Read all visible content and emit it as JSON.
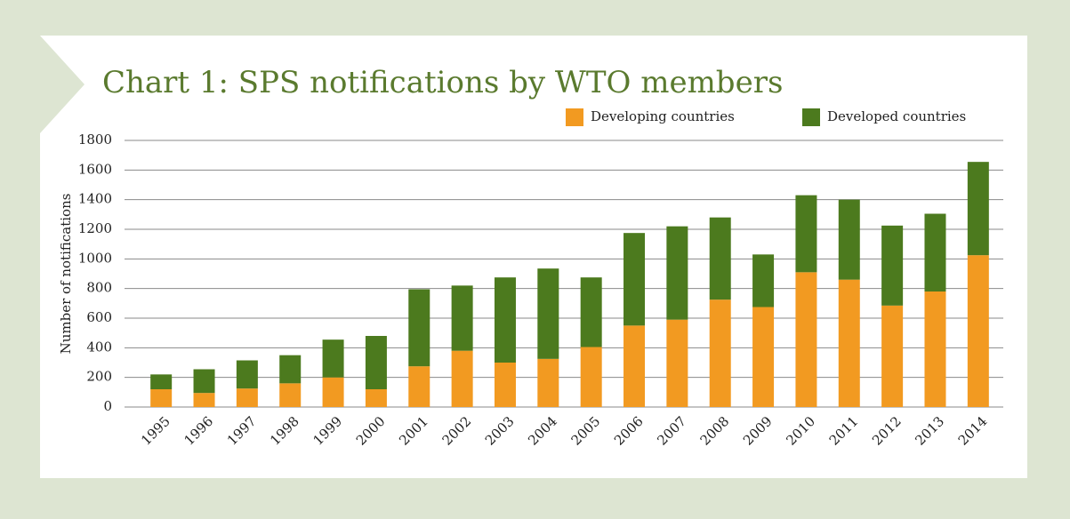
{
  "chart_data": {
    "type": "stacked_bar",
    "title": "Chart 1: SPS notifications by WTO members",
    "y_label": "Number of notifications",
    "categories": [
      "1995",
      "1996",
      "1997",
      "1998",
      "1999",
      "2000",
      "2001",
      "2002",
      "2003",
      "2004",
      "2005",
      "2006",
      "2007",
      "2008",
      "2009",
      "2010",
      "2011",
      "2012",
      "2013",
      "2014"
    ],
    "series": [
      {
        "name": "Developing countries",
        "color": "#f29a21",
        "values": [
          120,
          95,
          125,
          160,
          200,
          120,
          275,
          380,
          300,
          325,
          405,
          550,
          590,
          725,
          675,
          910,
          860,
          685,
          780,
          1025
        ]
      },
      {
        "name": "Developed countries",
        "color": "#4c7a1e",
        "values": [
          100,
          160,
          190,
          190,
          255,
          360,
          520,
          440,
          575,
          610,
          470,
          625,
          630,
          555,
          355,
          520,
          540,
          540,
          525,
          630
        ]
      }
    ],
    "ylim": [
      0,
      1800
    ],
    "yticks": [
      0,
      200,
      400,
      600,
      800,
      1000,
      1200,
      1400,
      1600,
      1800
    ],
    "grid": true,
    "legend": "top-right"
  }
}
